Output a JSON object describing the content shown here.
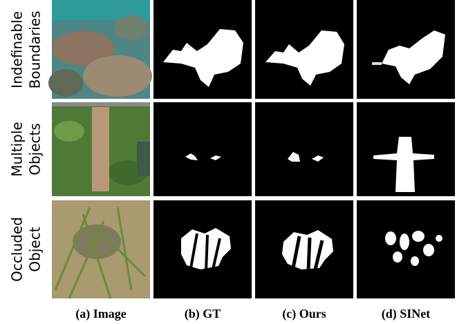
{
  "figure": {
    "rows": [
      {
        "label": [
          "Indefinable",
          "Boundaries"
        ]
      },
      {
        "label": [
          "Multiple",
          "Objects"
        ]
      },
      {
        "label": [
          "Occluded",
          "Object"
        ]
      }
    ],
    "columns": [
      "(a) Image",
      "(b) GT",
      "(c) Ours",
      "(d) SINet"
    ]
  }
}
